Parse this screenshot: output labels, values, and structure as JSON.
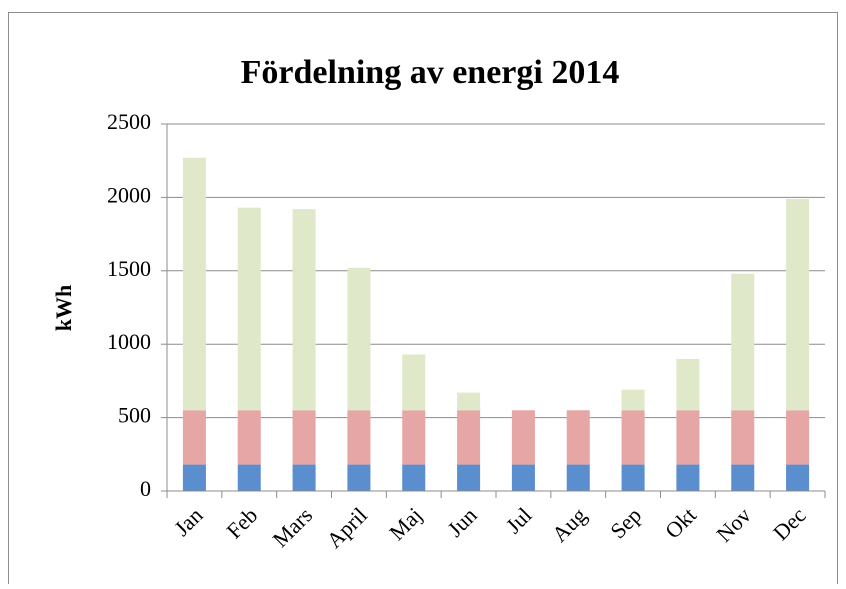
{
  "chart_data": {
    "type": "stacked_bar",
    "title": "Fördelning av energi 2014",
    "y_label": "kWh",
    "categories": [
      "Jan",
      "Feb",
      "Mars",
      "April",
      "Maj",
      "Jun",
      "Jul",
      "Aug",
      "Sep",
      "Okt",
      "Nov",
      "Dec"
    ],
    "series": [
      {
        "color": "#5b8ecf",
        "values": [
          180,
          180,
          180,
          180,
          180,
          180,
          180,
          180,
          180,
          180,
          180,
          180
        ]
      },
      {
        "color": "#e6a6a5",
        "values": [
          370,
          370,
          370,
          370,
          370,
          370,
          370,
          370,
          370,
          370,
          370,
          370
        ]
      },
      {
        "color": "#dfe8c8",
        "values": [
          1720,
          1380,
          1370,
          970,
          380,
          120,
          0,
          0,
          140,
          350,
          930,
          1440
        ]
      }
    ],
    "ylim": [
      0,
      2500
    ],
    "yticks": [
      0,
      500,
      1000,
      1500,
      2000,
      2500
    ],
    "grid": true
  }
}
